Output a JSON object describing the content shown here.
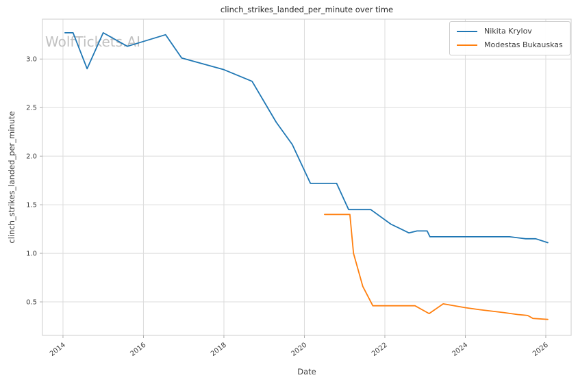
{
  "figure": {
    "watermark": "WolfTickets.AI"
  },
  "chart_data": {
    "type": "line",
    "title": "clinch_strikes_landed_per_minute over time",
    "xlabel": "Date",
    "ylabel": "clinch_strikes_landed_per_minute",
    "xlim": [
      2013.49,
      2026.63
    ],
    "ylim": [
      0.155,
      3.41
    ],
    "grid": true,
    "legend_position": "upper right",
    "x_ticks": {
      "values": [
        2014,
        2016,
        2018,
        2020,
        2022,
        2024,
        2026
      ],
      "labels": [
        "2014",
        "2016",
        "2018",
        "2020",
        "2022",
        "2024",
        "2026"
      ]
    },
    "y_ticks": {
      "values": [
        0.5,
        1.0,
        1.5,
        2.0,
        2.5,
        3.0
      ],
      "labels": [
        "0.5",
        "1.0",
        "1.5",
        "2.0",
        "2.5",
        "3.0"
      ]
    },
    "series": [
      {
        "name": "Nikita Krylov",
        "color": "#1f77b4",
        "x": [
          2014.05,
          2014.25,
          2014.6,
          2015.0,
          2015.6,
          2016.55,
          2016.95,
          2018.0,
          2018.7,
          2019.3,
          2019.7,
          2020.15,
          2020.8,
          2021.1,
          2021.65,
          2022.15,
          2022.4,
          2022.6,
          2022.8,
          2023.05,
          2023.12,
          2025.1,
          2025.5,
          2025.75,
          2026.05
        ],
        "y": [
          3.27,
          3.27,
          2.9,
          3.27,
          3.13,
          3.25,
          3.01,
          2.89,
          2.77,
          2.35,
          2.12,
          1.72,
          1.72,
          1.45,
          1.45,
          1.3,
          1.25,
          1.21,
          1.23,
          1.23,
          1.17,
          1.17,
          1.15,
          1.15,
          1.11
        ]
      },
      {
        "name": "Modestas Bukauskas",
        "color": "#ff7f0e",
        "x": [
          2020.5,
          2021.13,
          2021.22,
          2021.45,
          2021.7,
          2022.75,
          2023.1,
          2023.45,
          2024.0,
          2024.35,
          2024.95,
          2025.3,
          2025.55,
          2025.68,
          2026.05
        ],
        "y": [
          1.4,
          1.4,
          1.0,
          0.66,
          0.46,
          0.46,
          0.38,
          0.48,
          0.44,
          0.42,
          0.39,
          0.37,
          0.36,
          0.33,
          0.32
        ]
      }
    ]
  }
}
